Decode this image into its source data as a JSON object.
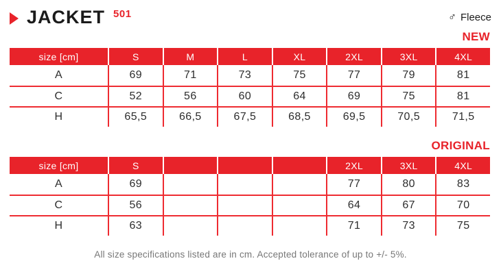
{
  "colors": {
    "red": "#e8232a",
    "line": "#ee2b31"
  },
  "title": {
    "name": "JACKET",
    "code": "501"
  },
  "gender": {
    "symbol": "♂",
    "text": "Fleece"
  },
  "tables": [
    {
      "label": "NEW",
      "header": [
        "size [cm]",
        "S",
        "M",
        "L",
        "XL",
        "2XL",
        "3XL",
        "4XL"
      ],
      "rows": [
        {
          "label": "A",
          "values": [
            "69",
            "71",
            "73",
            "75",
            "77",
            "79",
            "81"
          ]
        },
        {
          "label": "C",
          "values": [
            "52",
            "56",
            "60",
            "64",
            "69",
            "75",
            "81"
          ]
        },
        {
          "label": "H",
          "values": [
            "65,5",
            "66,5",
            "67,5",
            "68,5",
            "69,5",
            "70,5",
            "71,5"
          ]
        }
      ]
    },
    {
      "label": "ORIGINAL",
      "header": [
        "size [cm]",
        "S",
        "",
        "",
        "",
        "2XL",
        "3XL",
        "4XL"
      ],
      "rows": [
        {
          "label": "A",
          "values": [
            "69",
            "",
            "",
            "",
            "77",
            "80",
            "83"
          ]
        },
        {
          "label": "C",
          "values": [
            "56",
            "",
            "",
            "",
            "64",
            "67",
            "70"
          ]
        },
        {
          "label": "H",
          "values": [
            "63",
            "",
            "",
            "",
            "71",
            "73",
            "75"
          ]
        }
      ]
    }
  ],
  "footer": "All size specifications listed are in cm. Accepted tolerance of up to +/- 5%."
}
